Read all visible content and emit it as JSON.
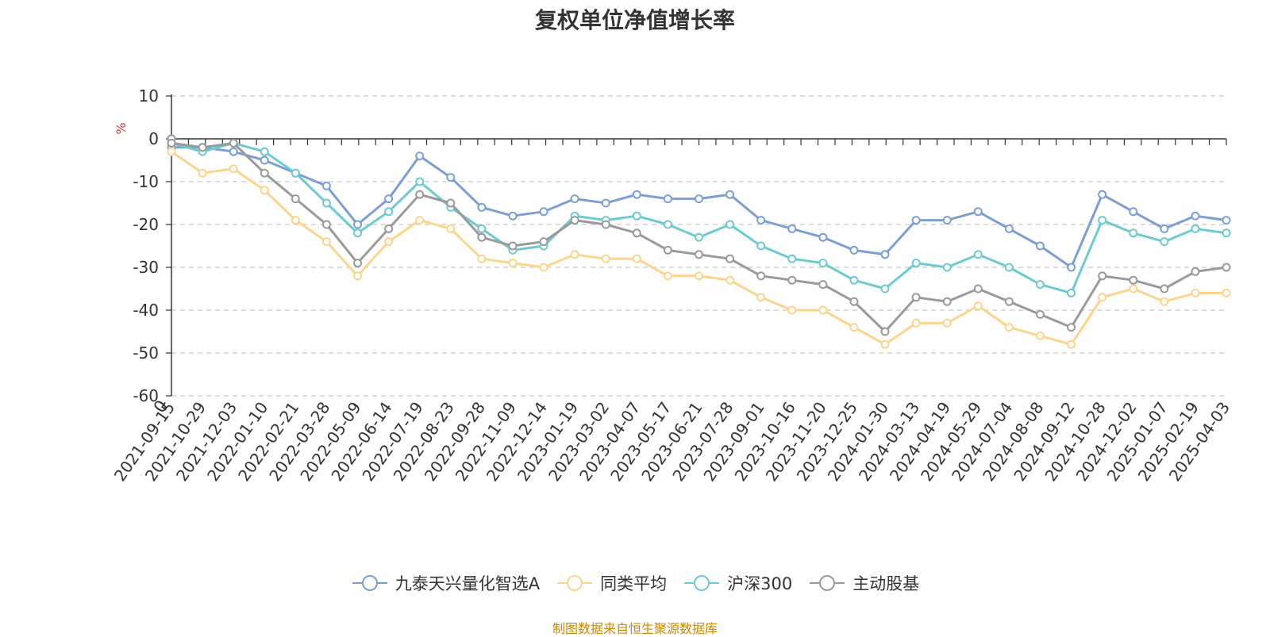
{
  "chart_data": {
    "type": "line",
    "title": "复权单位净值增长率",
    "ylabel": "%",
    "xlabel": "",
    "ylim": [
      -60,
      10
    ],
    "yticks": [
      "10",
      "0",
      "-10",
      "-20",
      "-30",
      "-40",
      "-50",
      "-60"
    ],
    "x_origin_label": "0",
    "x": [
      "2021-09-15",
      "2021-10-29",
      "2021-12-03",
      "2022-01-10",
      "2022-02-21",
      "2022-03-28",
      "2022-05-09",
      "2022-06-14",
      "2022-07-19",
      "2022-08-23",
      "2022-09-28",
      "2022-11-09",
      "2022-12-14",
      "2023-01-19",
      "2023-03-02",
      "2023-04-07",
      "2023-05-17",
      "2023-06-21",
      "2023-07-28",
      "2023-09-01",
      "2023-10-16",
      "2023-11-20",
      "2023-12-25",
      "2024-01-30",
      "2024-03-13",
      "2024-04-19",
      "2024-05-29",
      "2024-07-04",
      "2024-08-08",
      "2024-09-12",
      "2024-10-28",
      "2024-12-02",
      "2025-01-07",
      "2025-02-19",
      "2025-04-03"
    ],
    "series": [
      {
        "name": "九泰天兴量化智选A",
        "color": "#7b9fd4",
        "values": [
          -2,
          -2,
          -3,
          -5,
          -8,
          -11,
          -20,
          -14,
          -4,
          -9,
          -16,
          -18,
          -17,
          -14,
          -15,
          -13,
          -14,
          -14,
          -13,
          -19,
          -21,
          -23,
          -26,
          -27,
          -19,
          -19,
          -17,
          -21,
          -25,
          -30,
          -13,
          -17,
          -21,
          -18,
          -19
        ]
      },
      {
        "name": "同类平均",
        "color": "#fdd48b",
        "values": [
          -3,
          -8,
          -7,
          -12,
          -19,
          -24,
          -32,
          -24,
          -19,
          -21,
          -28,
          -29,
          -30,
          -27,
          -28,
          -28,
          -32,
          -32,
          -33,
          -37,
          -40,
          -40,
          -44,
          -48,
          -43,
          -43,
          -39,
          -44,
          -46,
          -48,
          -37,
          -35,
          -38,
          -36,
          -36
        ]
      },
      {
        "name": "沪深300",
        "color": "#6ccad1",
        "values": [
          -1,
          -3,
          -1,
          -3,
          -8,
          -15,
          -22,
          -17,
          -10,
          -16,
          -21,
          -26,
          -25,
          -18,
          -19,
          -18,
          -20,
          -23,
          -20,
          -25,
          -28,
          -29,
          -33,
          -35,
          -29,
          -30,
          -27,
          -30,
          -34,
          -36,
          -19,
          -22,
          -24,
          -21,
          -22
        ]
      },
      {
        "name": "主动股基",
        "color": "#9a9a9a",
        "values": [
          -1,
          -2,
          -1,
          -8,
          -14,
          -20,
          -29,
          -21,
          -13,
          -15,
          -23,
          -25,
          -24,
          -19,
          -20,
          -22,
          -26,
          -27,
          -28,
          -32,
          -33,
          -34,
          -38,
          -45,
          -37,
          -38,
          -35,
          -38,
          -41,
          -44,
          -32,
          -33,
          -35,
          -31,
          -30
        ]
      }
    ]
  },
  "source_note": "制图数据来自恒生聚源数据库"
}
